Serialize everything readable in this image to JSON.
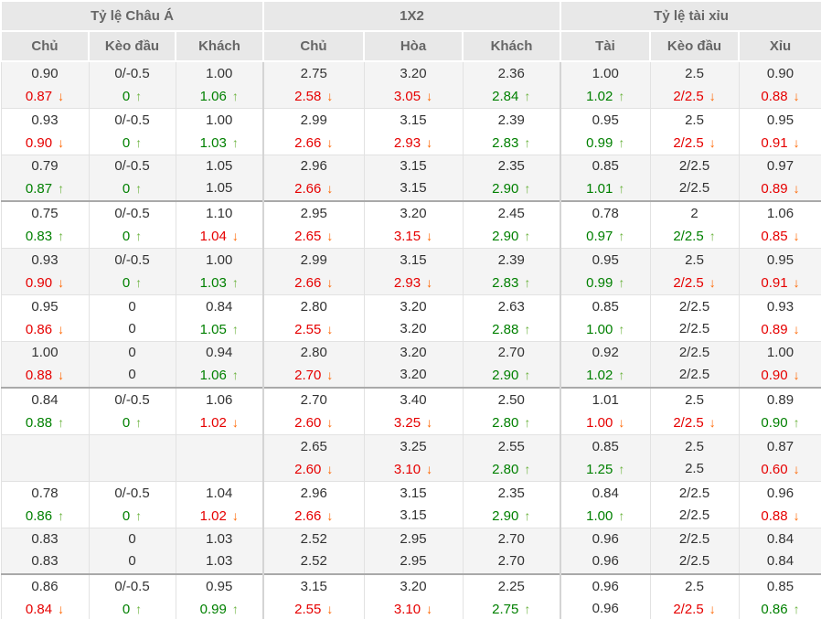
{
  "icons": {
    "up": "↑",
    "down": "↓"
  },
  "colors": {
    "value_up": "#008000",
    "value_down": "#e60000",
    "arrow_up": "#6cb33f",
    "arrow_down": "#ff6600",
    "header_bg": "#e8e8e8",
    "alt_row_bg": "#f4f4f4",
    "group_separator": "#a9a9a9",
    "text": "#333333"
  },
  "table": {
    "groups": [
      {
        "label": "Tỷ lệ Châu Á",
        "cols": [
          "Chủ",
          "Kèo đầu",
          "Khách"
        ]
      },
      {
        "label": "1X2",
        "cols": [
          "Chủ",
          "Hòa",
          "Khách"
        ]
      },
      {
        "label": "Tỷ lệ tài xỉu",
        "cols": [
          "Tài",
          "Kèo đầu",
          "Xỉu"
        ]
      }
    ],
    "group_start_rows": [
      3,
      7,
      11
    ],
    "rows": [
      {
        "cells": [
          {
            "v1": "0.90",
            "v2": "0.87",
            "trend": "down"
          },
          {
            "v1": "0/-0.5",
            "v2": "0",
            "trend": "up"
          },
          {
            "v1": "1.00",
            "v2": "1.06",
            "trend": "up"
          },
          {
            "v1": "2.75",
            "v2": "2.58",
            "trend": "down"
          },
          {
            "v1": "3.20",
            "v2": "3.05",
            "trend": "down"
          },
          {
            "v1": "2.36",
            "v2": "2.84",
            "trend": "up"
          },
          {
            "v1": "1.00",
            "v2": "1.02",
            "trend": "up"
          },
          {
            "v1": "2.5",
            "v2": "2/2.5",
            "trend": "down"
          },
          {
            "v1": "0.90",
            "v2": "0.88",
            "trend": "down"
          }
        ]
      },
      {
        "cells": [
          {
            "v1": "0.93",
            "v2": "0.90",
            "trend": "down"
          },
          {
            "v1": "0/-0.5",
            "v2": "0",
            "trend": "up"
          },
          {
            "v1": "1.00",
            "v2": "1.03",
            "trend": "up"
          },
          {
            "v1": "2.99",
            "v2": "2.66",
            "trend": "down"
          },
          {
            "v1": "3.15",
            "v2": "2.93",
            "trend": "down"
          },
          {
            "v1": "2.39",
            "v2": "2.83",
            "trend": "up"
          },
          {
            "v1": "0.95",
            "v2": "0.99",
            "trend": "up"
          },
          {
            "v1": "2.5",
            "v2": "2/2.5",
            "trend": "down"
          },
          {
            "v1": "0.95",
            "v2": "0.91",
            "trend": "down"
          }
        ]
      },
      {
        "cells": [
          {
            "v1": "0.79",
            "v2": "0.87",
            "trend": "up"
          },
          {
            "v1": "0/-0.5",
            "v2": "0",
            "trend": "up"
          },
          {
            "v1": "1.05",
            "v2": "1.05",
            "trend": "none"
          },
          {
            "v1": "2.96",
            "v2": "2.66",
            "trend": "down"
          },
          {
            "v1": "3.15",
            "v2": "3.15",
            "trend": "none"
          },
          {
            "v1": "2.35",
            "v2": "2.90",
            "trend": "up"
          },
          {
            "v1": "0.85",
            "v2": "1.01",
            "trend": "up"
          },
          {
            "v1": "2/2.5",
            "v2": "2/2.5",
            "trend": "none"
          },
          {
            "v1": "0.97",
            "v2": "0.89",
            "trend": "down"
          }
        ]
      },
      {
        "cells": [
          {
            "v1": "0.75",
            "v2": "0.83",
            "trend": "up"
          },
          {
            "v1": "0/-0.5",
            "v2": "0",
            "trend": "up"
          },
          {
            "v1": "1.10",
            "v2": "1.04",
            "trend": "down"
          },
          {
            "v1": "2.95",
            "v2": "2.65",
            "trend": "down"
          },
          {
            "v1": "3.20",
            "v2": "3.15",
            "trend": "down"
          },
          {
            "v1": "2.45",
            "v2": "2.90",
            "trend": "up"
          },
          {
            "v1": "0.78",
            "v2": "0.97",
            "trend": "up"
          },
          {
            "v1": "2",
            "v2": "2/2.5",
            "trend": "up"
          },
          {
            "v1": "1.06",
            "v2": "0.85",
            "trend": "down"
          }
        ]
      },
      {
        "cells": [
          {
            "v1": "0.93",
            "v2": "0.90",
            "trend": "down"
          },
          {
            "v1": "0/-0.5",
            "v2": "0",
            "trend": "up"
          },
          {
            "v1": "1.00",
            "v2": "1.03",
            "trend": "up"
          },
          {
            "v1": "2.99",
            "v2": "2.66",
            "trend": "down"
          },
          {
            "v1": "3.15",
            "v2": "2.93",
            "trend": "down"
          },
          {
            "v1": "2.39",
            "v2": "2.83",
            "trend": "up"
          },
          {
            "v1": "0.95",
            "v2": "0.99",
            "trend": "up"
          },
          {
            "v1": "2.5",
            "v2": "2/2.5",
            "trend": "down"
          },
          {
            "v1": "0.95",
            "v2": "0.91",
            "trend": "down"
          }
        ]
      },
      {
        "cells": [
          {
            "v1": "0.95",
            "v2": "0.86",
            "trend": "down"
          },
          {
            "v1": "0",
            "v2": "0",
            "trend": "none"
          },
          {
            "v1": "0.84",
            "v2": "1.05",
            "trend": "up"
          },
          {
            "v1": "2.80",
            "v2": "2.55",
            "trend": "down"
          },
          {
            "v1": "3.20",
            "v2": "3.20",
            "trend": "none"
          },
          {
            "v1": "2.63",
            "v2": "2.88",
            "trend": "up"
          },
          {
            "v1": "0.85",
            "v2": "1.00",
            "trend": "up"
          },
          {
            "v1": "2/2.5",
            "v2": "2/2.5",
            "trend": "none"
          },
          {
            "v1": "0.93",
            "v2": "0.89",
            "trend": "down"
          }
        ]
      },
      {
        "cells": [
          {
            "v1": "1.00",
            "v2": "0.88",
            "trend": "down"
          },
          {
            "v1": "0",
            "v2": "0",
            "trend": "none"
          },
          {
            "v1": "0.94",
            "v2": "1.06",
            "trend": "up"
          },
          {
            "v1": "2.80",
            "v2": "2.70",
            "trend": "down"
          },
          {
            "v1": "3.20",
            "v2": "3.20",
            "trend": "none"
          },
          {
            "v1": "2.70",
            "v2": "2.90",
            "trend": "up"
          },
          {
            "v1": "0.92",
            "v2": "1.02",
            "trend": "up"
          },
          {
            "v1": "2/2.5",
            "v2": "2/2.5",
            "trend": "none"
          },
          {
            "v1": "1.00",
            "v2": "0.90",
            "trend": "down"
          }
        ]
      },
      {
        "cells": [
          {
            "v1": "0.84",
            "v2": "0.88",
            "trend": "up"
          },
          {
            "v1": "0/-0.5",
            "v2": "0",
            "trend": "up"
          },
          {
            "v1": "1.06",
            "v2": "1.02",
            "trend": "down"
          },
          {
            "v1": "2.70",
            "v2": "2.60",
            "trend": "down"
          },
          {
            "v1": "3.40",
            "v2": "3.25",
            "trend": "down"
          },
          {
            "v1": "2.50",
            "v2": "2.80",
            "trend": "up"
          },
          {
            "v1": "1.01",
            "v2": "1.00",
            "trend": "down"
          },
          {
            "v1": "2.5",
            "v2": "2/2.5",
            "trend": "down"
          },
          {
            "v1": "0.89",
            "v2": "0.90",
            "trend": "up"
          }
        ]
      },
      {
        "cells": [
          {
            "v1": "",
            "v2": "",
            "trend": "none"
          },
          {
            "v1": "",
            "v2": "",
            "trend": "none"
          },
          {
            "v1": "",
            "v2": "",
            "trend": "none"
          },
          {
            "v1": "2.65",
            "v2": "2.60",
            "trend": "down"
          },
          {
            "v1": "3.25",
            "v2": "3.10",
            "trend": "down"
          },
          {
            "v1": "2.55",
            "v2": "2.80",
            "trend": "up"
          },
          {
            "v1": "0.85",
            "v2": "1.25",
            "trend": "up"
          },
          {
            "v1": "2.5",
            "v2": "2.5",
            "trend": "none"
          },
          {
            "v1": "0.87",
            "v2": "0.60",
            "trend": "down"
          }
        ]
      },
      {
        "cells": [
          {
            "v1": "0.78",
            "v2": "0.86",
            "trend": "up"
          },
          {
            "v1": "0/-0.5",
            "v2": "0",
            "trend": "up"
          },
          {
            "v1": "1.04",
            "v2": "1.02",
            "trend": "down"
          },
          {
            "v1": "2.96",
            "v2": "2.66",
            "trend": "down"
          },
          {
            "v1": "3.15",
            "v2": "3.15",
            "trend": "none"
          },
          {
            "v1": "2.35",
            "v2": "2.90",
            "trend": "up"
          },
          {
            "v1": "0.84",
            "v2": "1.00",
            "trend": "up"
          },
          {
            "v1": "2/2.5",
            "v2": "2/2.5",
            "trend": "none"
          },
          {
            "v1": "0.96",
            "v2": "0.88",
            "trend": "down"
          }
        ]
      },
      {
        "cells": [
          {
            "v1": "0.83",
            "v2": "0.83",
            "trend": "none"
          },
          {
            "v1": "0",
            "v2": "0",
            "trend": "none"
          },
          {
            "v1": "1.03",
            "v2": "1.03",
            "trend": "none"
          },
          {
            "v1": "2.52",
            "v2": "2.52",
            "trend": "none"
          },
          {
            "v1": "2.95",
            "v2": "2.95",
            "trend": "none"
          },
          {
            "v1": "2.70",
            "v2": "2.70",
            "trend": "none"
          },
          {
            "v1": "0.96",
            "v2": "0.96",
            "trend": "none"
          },
          {
            "v1": "2/2.5",
            "v2": "2/2.5",
            "trend": "none"
          },
          {
            "v1": "0.84",
            "v2": "0.84",
            "trend": "none"
          }
        ]
      },
      {
        "cells": [
          {
            "v1": "0.86",
            "v2": "0.84",
            "trend": "down"
          },
          {
            "v1": "0/-0.5",
            "v2": "0",
            "trend": "up"
          },
          {
            "v1": "0.95",
            "v2": "0.99",
            "trend": "up"
          },
          {
            "v1": "3.15",
            "v2": "2.55",
            "trend": "down"
          },
          {
            "v1": "3.20",
            "v2": "3.10",
            "trend": "down"
          },
          {
            "v1": "2.25",
            "v2": "2.75",
            "trend": "up"
          },
          {
            "v1": "0.96",
            "v2": "0.96",
            "trend": "none"
          },
          {
            "v1": "2.5",
            "v2": "2/2.5",
            "trend": "down"
          },
          {
            "v1": "0.85",
            "v2": "0.86",
            "trend": "up"
          }
        ]
      }
    ]
  }
}
